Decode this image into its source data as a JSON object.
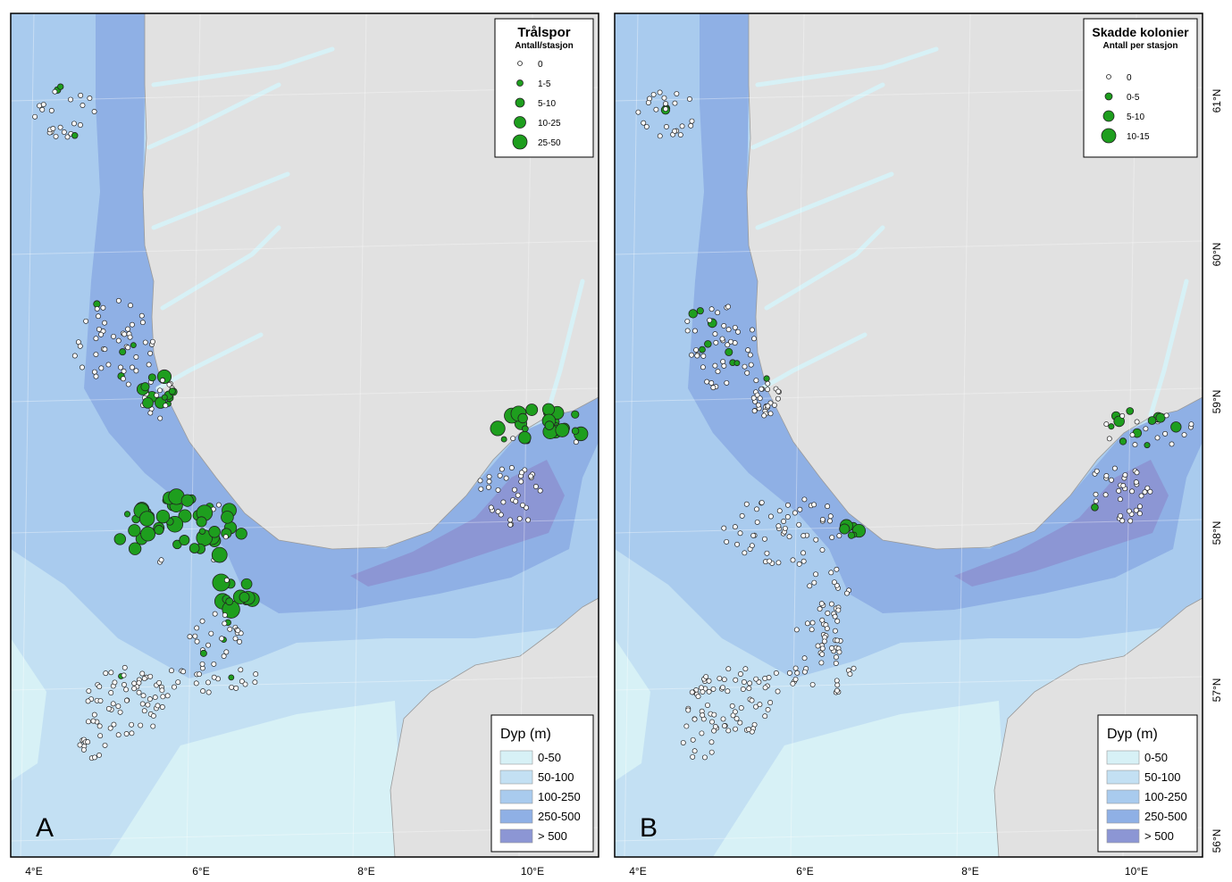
{
  "panels": [
    {
      "label": "A",
      "legend": {
        "title": "Trålspor",
        "subtitle": "Antall/stasjon",
        "classes": [
          "0",
          "1-5",
          "5-10",
          "10-25",
          "25-50"
        ]
      },
      "depth_legend": {
        "title": "Dyp (m)",
        "classes": [
          "0-50",
          "50-100",
          "100-250",
          "250-500",
          "> 500"
        ]
      }
    },
    {
      "label": "B",
      "legend": {
        "title": "Skadde kolonier",
        "subtitle": "Antall per stasjon",
        "classes": [
          "0",
          "0-5",
          "5-10",
          "10-15"
        ]
      },
      "depth_legend": {
        "title": "Dyp (m)",
        "classes": [
          "0-50",
          "50-100",
          "100-250",
          "250-500",
          "> 500"
        ]
      }
    }
  ],
  "longitude_labels": [
    "4°E",
    "6°E",
    "8°E",
    "10°E"
  ],
  "latitude_labels": [
    "61°N",
    "60°N",
    "59°N",
    "58°N",
    "57°N",
    "56°N"
  ]
}
